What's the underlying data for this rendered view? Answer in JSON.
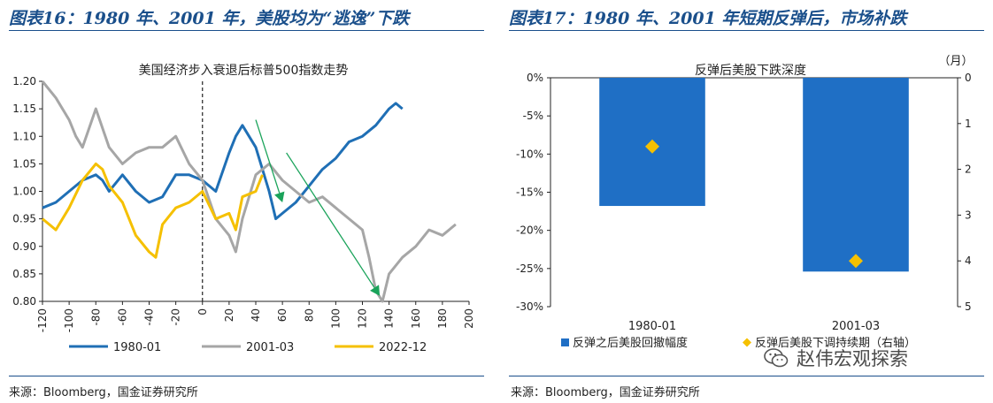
{
  "left_panel": {
    "title": "图表16：1980 年、2001 年，美股均为“逃逸”下跌",
    "source": "来源：Bloomberg，国金证券研究所"
  },
  "right_panel": {
    "title": "图表17：1980 年、2001 年短期反弹后，市场补跌",
    "source": "来源：Bloomberg，国金证券研究所"
  },
  "watermark": {
    "text": "赵伟宏观探索",
    "icon": "wechat-icon"
  },
  "chart_data": [
    {
      "type": "line",
      "title": "美国经济步入衰退后标普500指数走势",
      "xlim": [
        -120,
        200
      ],
      "ylim": [
        0.8,
        1.2
      ],
      "x_ticks": [
        "-120",
        "-100",
        "-80",
        "-60",
        "-40",
        "-20",
        "0",
        "20",
        "40",
        "60",
        "80",
        "100",
        "120",
        "140",
        "160",
        "180",
        "200"
      ],
      "y_ticks": [
        "0.80",
        "0.85",
        "0.90",
        "0.95",
        "1.00",
        "1.05",
        "1.10",
        "1.15",
        "1.20"
      ],
      "vline_x": 0,
      "series": [
        {
          "name": "1980-01",
          "color": "#1f6fb5",
          "x": [
            -120,
            -110,
            -100,
            -90,
            -80,
            -75,
            -70,
            -60,
            -50,
            -40,
            -30,
            -20,
            -10,
            0,
            10,
            20,
            25,
            30,
            40,
            50,
            55,
            60,
            70,
            80,
            90,
            100,
            110,
            120,
            130,
            140,
            145,
            150
          ],
          "y": [
            0.97,
            0.98,
            1.0,
            1.02,
            1.03,
            1.02,
            1.0,
            1.03,
            1.0,
            0.98,
            0.99,
            1.03,
            1.03,
            1.02,
            1.0,
            1.07,
            1.1,
            1.12,
            1.08,
            1.0,
            0.95,
            0.96,
            0.98,
            1.01,
            1.04,
            1.06,
            1.09,
            1.1,
            1.12,
            1.15,
            1.16,
            1.15
          ]
        },
        {
          "name": "2001-03",
          "color": "#a6a6a6",
          "x": [
            -120,
            -110,
            -100,
            -95,
            -90,
            -80,
            -70,
            -60,
            -50,
            -40,
            -30,
            -20,
            -10,
            0,
            10,
            20,
            25,
            30,
            40,
            50,
            60,
            70,
            80,
            90,
            100,
            110,
            120,
            125,
            130,
            135,
            140,
            150,
            160,
            170,
            180,
            190
          ],
          "y": [
            1.2,
            1.17,
            1.13,
            1.1,
            1.08,
            1.15,
            1.08,
            1.05,
            1.07,
            1.08,
            1.08,
            1.1,
            1.05,
            1.02,
            0.95,
            0.92,
            0.89,
            0.95,
            1.03,
            1.05,
            1.02,
            1.0,
            0.98,
            0.99,
            0.97,
            0.95,
            0.93,
            0.88,
            0.82,
            0.8,
            0.85,
            0.88,
            0.9,
            0.93,
            0.92,
            0.94
          ]
        },
        {
          "name": "2022-12",
          "color": "#f5c000",
          "x": [
            -120,
            -110,
            -100,
            -90,
            -80,
            -75,
            -70,
            -60,
            -50,
            -40,
            -35,
            -30,
            -20,
            -10,
            0,
            10,
            20,
            25,
            30,
            40,
            45
          ],
          "y": [
            0.95,
            0.93,
            0.97,
            1.02,
            1.05,
            1.04,
            1.01,
            0.98,
            0.92,
            0.89,
            0.88,
            0.94,
            0.97,
            0.98,
            1.0,
            0.95,
            0.96,
            0.93,
            0.99,
            1.0,
            1.03
          ]
        }
      ],
      "annotations": [
        {
          "type": "arrow",
          "color": "#1aa35a",
          "x1": 40,
          "y1": 1.13,
          "x2": 60,
          "y2": 0.98
        },
        {
          "type": "arrow",
          "color": "#1aa35a",
          "x1": 63,
          "y1": 1.07,
          "x2": 133,
          "y2": 0.81
        }
      ],
      "legend_position": "bottom"
    },
    {
      "type": "bar",
      "title": "反弹后美股下跌深度",
      "categories": [
        "1980-01",
        "2001-03"
      ],
      "ylim": [
        -30,
        0
      ],
      "y_ticks": [
        "0%",
        "-5%",
        "-10%",
        "-15%",
        "-20%",
        "-25%",
        "-30%"
      ],
      "y2lim": [
        0,
        5
      ],
      "y2_ticks": [
        "0",
        "1",
        "2",
        "3",
        "4",
        "5"
      ],
      "y2_unit": "（月）",
      "series": [
        {
          "name": "反弹之后美股回撤幅度",
          "type": "bar",
          "axis": "left",
          "color": "#1f6fc5",
          "values": [
            -16.8,
            -25.4
          ]
        },
        {
          "name": "反弹后美股下调持续期（右轴）",
          "type": "marker",
          "axis": "right",
          "color": "#f5c000",
          "values": [
            1.5,
            4.0
          ]
        }
      ],
      "legend_position": "bottom"
    }
  ]
}
